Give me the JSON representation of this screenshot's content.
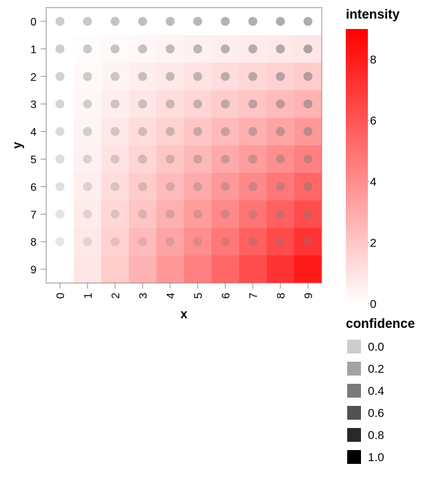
{
  "chart_data": {
    "type": "heatmap",
    "xlabel": "x",
    "ylabel": "y",
    "x": [
      0,
      1,
      2,
      3,
      4,
      5,
      6,
      7,
      8,
      9
    ],
    "y": [
      0,
      1,
      2,
      3,
      4,
      5,
      6,
      7,
      8,
      9
    ],
    "intensity_formula_note": "",
    "intensity": [
      [
        0.0,
        0.0,
        0.0,
        0.0,
        0.0,
        0.0,
        0.0,
        0.0,
        0.0,
        0.0
      ],
      [
        0.0,
        0.1,
        0.2,
        0.3,
        0.4,
        0.5,
        0.6,
        0.7,
        0.8,
        0.9
      ],
      [
        0.0,
        0.2,
        0.4,
        0.6,
        0.8,
        1.0,
        1.2,
        1.4,
        1.6,
        1.8
      ],
      [
        0.0,
        0.3,
        0.6,
        0.9,
        1.2,
        1.5,
        1.8,
        2.1,
        2.4,
        2.7
      ],
      [
        0.0,
        0.4,
        0.8,
        1.2,
        1.6,
        2.0,
        2.4,
        2.8,
        3.2,
        3.6
      ],
      [
        0.0,
        0.5,
        1.0,
        1.5,
        2.0,
        2.5,
        3.0,
        3.5,
        4.0,
        4.5
      ],
      [
        0.0,
        0.6,
        1.2,
        1.8,
        2.4,
        3.0,
        3.6,
        4.2,
        4.8,
        5.4
      ],
      [
        0.0,
        0.7,
        1.4,
        2.1,
        2.8,
        3.5,
        4.2,
        4.9,
        5.6,
        6.3
      ],
      [
        0.0,
        0.8,
        1.6,
        2.4,
        3.2,
        4.0,
        4.8,
        5.6,
        6.4,
        7.2
      ],
      [
        0.0,
        0.9,
        1.8,
        2.7,
        3.6,
        4.5,
        5.4,
        6.3,
        7.2,
        8.1
      ]
    ],
    "confidence": [
      [
        0.3,
        0.3,
        0.3,
        0.3,
        0.3,
        0.3,
        0.3,
        0.3,
        0.3,
        0.3
      ],
      [
        0.3,
        0.3,
        0.3,
        0.3,
        0.3,
        0.3,
        0.3,
        0.3,
        0.3,
        0.3
      ],
      [
        0.3,
        0.3,
        0.3,
        0.3,
        0.3,
        0.3,
        0.3,
        0.3,
        0.3,
        0.3
      ],
      [
        0.3,
        0.3,
        0.3,
        0.3,
        0.3,
        0.3,
        0.3,
        0.3,
        0.3,
        0.3
      ],
      [
        0.3,
        0.3,
        0.3,
        0.3,
        0.3,
        0.3,
        0.3,
        0.3,
        0.3,
        0.3
      ],
      [
        0.3,
        0.3,
        0.3,
        0.3,
        0.3,
        0.3,
        0.3,
        0.3,
        0.3,
        0.3
      ],
      [
        0.3,
        0.3,
        0.3,
        0.3,
        0.3,
        0.3,
        0.3,
        0.3,
        0.3,
        0.3
      ],
      [
        0.3,
        0.3,
        0.3,
        0.3,
        0.3,
        0.3,
        0.3,
        0.3,
        0.3,
        0.3
      ],
      [
        0.3,
        0.3,
        0.3,
        0.3,
        0.3,
        0.3,
        0.3,
        0.3,
        0.3,
        0.3
      ],
      [
        0.3,
        0.3,
        0.3,
        0.3,
        0.3,
        0.3,
        0.3,
        0.3,
        0.3,
        0.3
      ]
    ],
    "color_scale": {
      "title": "intensity",
      "domain": [
        0,
        9
      ],
      "ticks": [
        0,
        2,
        4,
        6,
        8
      ],
      "low_color": "#ffffff",
      "high_color": "#ff0000"
    },
    "confidence_legend": {
      "title": "confidence",
      "items": [
        {
          "label": "0.0",
          "color": "#cccccc"
        },
        {
          "label": "0.2",
          "color": "#a3a3a3"
        },
        {
          "label": "0.4",
          "color": "#7a7a7a"
        },
        {
          "label": "0.6",
          "color": "#525252"
        },
        {
          "label": "0.8",
          "color": "#292929"
        },
        {
          "label": "1.0",
          "color": "#000000"
        }
      ]
    },
    "point_color": "#7a7a7a",
    "legend_placement": "right",
    "grid": false
  }
}
